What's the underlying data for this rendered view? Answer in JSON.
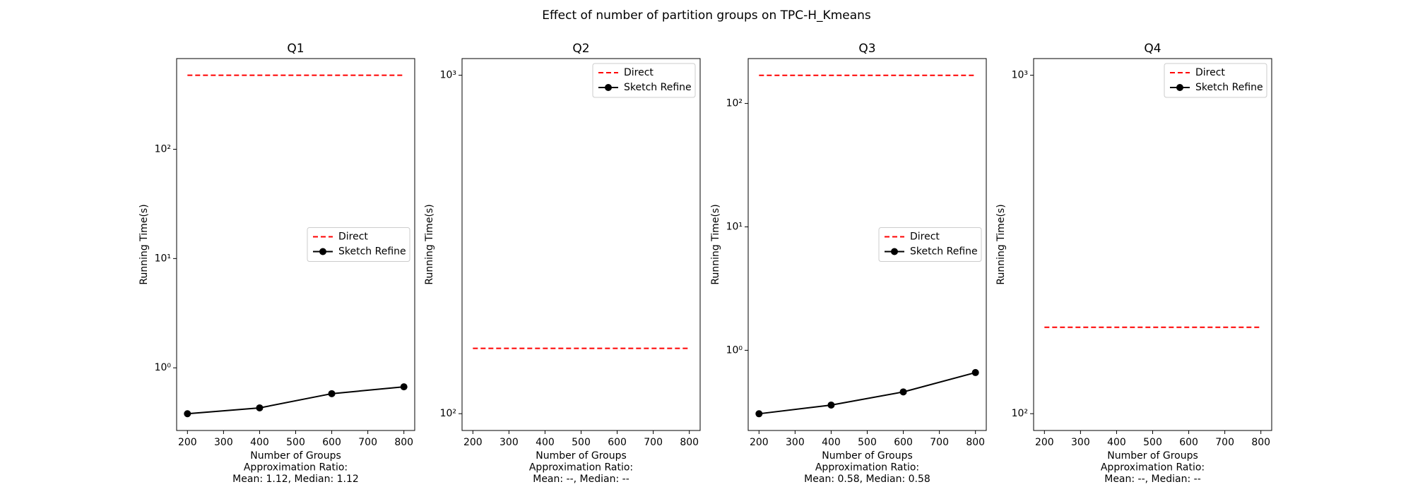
{
  "title": "Effect of number of partition groups on TPC-H_Kmeans",
  "chart_data": [
    {
      "type": "line",
      "title": "Q1",
      "ylabel": "Running Time(s)",
      "xlabel_lines": [
        "Number of Groups",
        "Approximation Ratio:",
        "Mean: 1.12, Median: 1.12"
      ],
      "x": [
        200,
        400,
        600,
        800
      ],
      "xlim": [
        170,
        830
      ],
      "xticks": [
        200,
        300,
        400,
        500,
        600,
        700,
        800
      ],
      "ylog": true,
      "ylim": [
        0.267,
        676
      ],
      "yticks": [
        {
          "value": 1,
          "label": "10⁰"
        },
        {
          "value": 10,
          "label": "10¹"
        },
        {
          "value": 100,
          "label": "10²"
        }
      ],
      "legend": "center right",
      "series": [
        {
          "name": "Direct",
          "color": "#ff0000",
          "dash": true,
          "values": [
            476,
            476,
            476,
            476
          ]
        },
        {
          "name": "Sketch Refine",
          "color": "#000000",
          "marker": true,
          "values": [
            0.38,
            0.43,
            0.58,
            0.67
          ]
        }
      ]
    },
    {
      "type": "line",
      "title": "Q2",
      "ylabel": "Running Time(s)",
      "xlabel_lines": [
        "Number of Groups",
        "Approximation Ratio:",
        "Mean: --, Median: --"
      ],
      "x": [
        200,
        400,
        600,
        800
      ],
      "xlim": [
        170,
        830
      ],
      "xticks": [
        200,
        300,
        400,
        500,
        600,
        700,
        800
      ],
      "ylog": true,
      "ylim": [
        89.2,
        1120
      ],
      "yticks": [
        {
          "value": 100,
          "label": "10²"
        },
        {
          "value": 1000,
          "label": "10³"
        }
      ],
      "legend": "upper right",
      "series": [
        {
          "name": "Direct",
          "color": "#ff0000",
          "dash": true,
          "values": [
            156,
            156,
            156,
            156
          ]
        },
        {
          "name": "Sketch Refine",
          "color": "#000000",
          "marker": true,
          "values": [
            null,
            null,
            null,
            null
          ]
        }
      ]
    },
    {
      "type": "line",
      "title": "Q3",
      "ylabel": "Running Time(s)",
      "xlabel_lines": [
        "Number of Groups",
        "Approximation Ratio:",
        "Mean: 0.58, Median: 0.58"
      ],
      "x": [
        200,
        400,
        600,
        800
      ],
      "xlim": [
        170,
        830
      ],
      "xticks": [
        200,
        300,
        400,
        500,
        600,
        700,
        800
      ],
      "ylog": true,
      "ylim": [
        0.224,
        231
      ],
      "yticks": [
        {
          "value": 1,
          "label": "10⁰"
        },
        {
          "value": 10,
          "label": "10¹"
        },
        {
          "value": 100,
          "label": "10²"
        }
      ],
      "legend": "center right",
      "series": [
        {
          "name": "Direct",
          "color": "#ff0000",
          "dash": true,
          "values": [
            169,
            169,
            169,
            169
          ]
        },
        {
          "name": "Sketch Refine",
          "color": "#000000",
          "marker": true,
          "values": [
            0.306,
            0.36,
            0.46,
            0.66
          ]
        }
      ]
    },
    {
      "type": "line",
      "title": "Q4",
      "ylabel": "Running Time(s)",
      "xlabel_lines": [
        "Number of Groups",
        "Approximation Ratio:",
        "Mean: --, Median: --"
      ],
      "x": [
        200,
        400,
        600,
        800
      ],
      "xlim": [
        170,
        830
      ],
      "xticks": [
        200,
        300,
        400,
        500,
        600,
        700,
        800
      ],
      "ylog": true,
      "ylim": [
        89.2,
        1120
      ],
      "yticks": [
        {
          "value": 100,
          "label": "10²"
        },
        {
          "value": 1000,
          "label": "10³"
        }
      ],
      "legend": "upper right",
      "series": [
        {
          "name": "Direct",
          "color": "#ff0000",
          "dash": true,
          "values": [
            180,
            180,
            180,
            180
          ]
        },
        {
          "name": "Sketch Refine",
          "color": "#000000",
          "marker": true,
          "values": [
            null,
            null,
            null,
            null
          ]
        }
      ]
    }
  ]
}
